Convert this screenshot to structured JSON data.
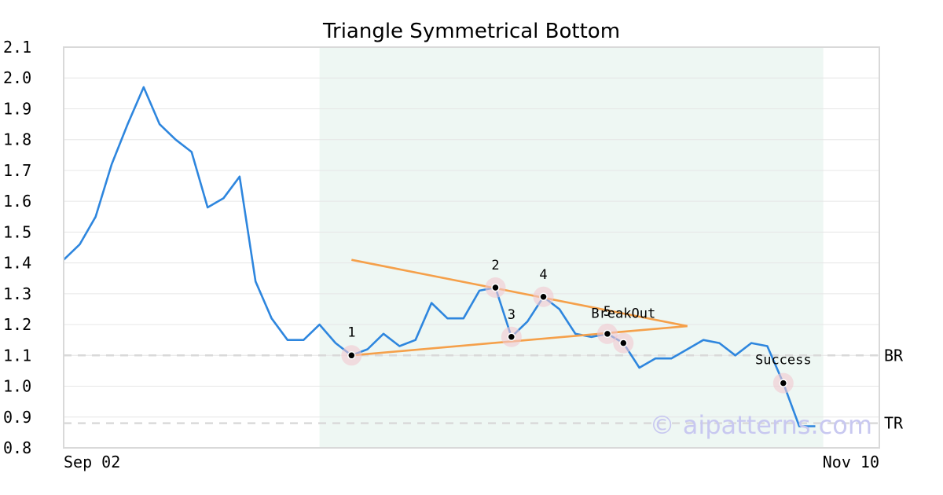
{
  "chart_data": {
    "type": "line",
    "title": "Triangle Symmetrical Bottom",
    "xlabel": "",
    "ylabel": "",
    "x_tick_labels": [
      "Sep 02",
      "Nov 10"
    ],
    "ylim": [
      0.8,
      2.1
    ],
    "y_ticks": [
      "0.8",
      "0.9",
      "1.0",
      "1.1",
      "1.2",
      "1.3",
      "1.4",
      "1.5",
      "1.6",
      "1.7",
      "1.8",
      "1.9",
      "2.0",
      "2.1"
    ],
    "grid": true,
    "series": [
      {
        "color": "#2e86de",
        "values": [
          1.41,
          1.46,
          1.55,
          1.72,
          1.85,
          1.97,
          1.85,
          1.8,
          1.76,
          1.58,
          1.61,
          1.68,
          1.34,
          1.22,
          1.15,
          1.15,
          1.2,
          1.14,
          1.1,
          1.12,
          1.17,
          1.13,
          1.15,
          1.27,
          1.22,
          1.22,
          1.31,
          1.32,
          1.16,
          1.21,
          1.29,
          1.25,
          1.17,
          1.16,
          1.17,
          1.14,
          1.06,
          1.09,
          1.09,
          1.12,
          1.15,
          1.14,
          1.1,
          1.14,
          1.13,
          1.01,
          0.87,
          0.87
        ]
      }
    ],
    "pattern_region": {
      "start_index": 16,
      "end_index": 47,
      "color": "#eef7f3"
    },
    "trendlines": [
      {
        "from": [
          18,
          1.41
        ],
        "to": [
          39,
          1.195
        ],
        "color": "#f5a04a"
      },
      {
        "from": [
          18,
          1.1
        ],
        "to": [
          39,
          1.195
        ],
        "color": "#f5a04a"
      }
    ],
    "reference_lines": [
      {
        "label": "BR",
        "y": 1.1
      },
      {
        "label": "TR",
        "y": 0.88
      }
    ],
    "points": [
      {
        "label": "1",
        "x": 18,
        "y": 1.1
      },
      {
        "label": "2",
        "x": 27,
        "y": 1.32
      },
      {
        "label": "3",
        "x": 28,
        "y": 1.16
      },
      {
        "label": "4",
        "x": 30,
        "y": 1.29
      },
      {
        "label": "5",
        "x": 34,
        "y": 1.17
      },
      {
        "label": "BreakOut",
        "x": 35,
        "y": 1.14
      },
      {
        "label": "Success",
        "x": 45,
        "y": 1.01
      }
    ],
    "watermark": "© aipatterns.com"
  }
}
